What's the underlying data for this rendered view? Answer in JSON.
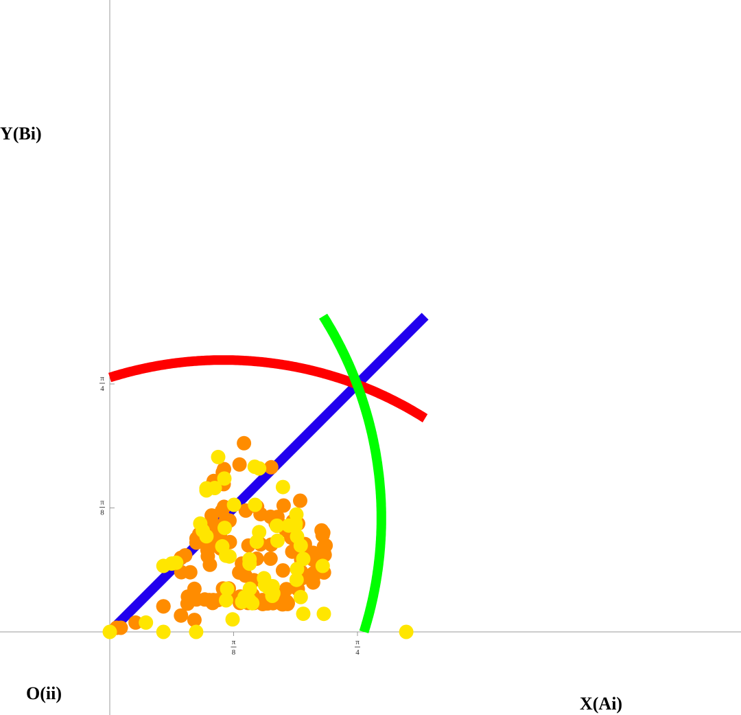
{
  "labels": {
    "y_axis": "Y(Bi)",
    "origin": "O(ii)",
    "x_axis": "X(Ai)"
  },
  "chart_data": {
    "type": "scatter",
    "title": "",
    "xlim": [
      0,
      1.0
    ],
    "ylim": [
      -0.06,
      1.06
    ],
    "x_ticks": [
      {
        "value": 0.3927,
        "numerator": "π",
        "denominator": "8"
      },
      {
        "value": 0.7854,
        "numerator": "π",
        "denominator": "4"
      }
    ],
    "y_ticks": [
      {
        "value": 0.3927,
        "numerator": "π",
        "denominator": "8"
      },
      {
        "value": 0.7854,
        "numerator": "π",
        "denominator": "4"
      }
    ],
    "curves": [
      {
        "name": "",
        "color": "#2200ee",
        "kind": "line",
        "from": [
          0,
          0
        ],
        "to": [
          1.0,
          1.0
        ]
      },
      {
        "name": "",
        "color": "#ff0000",
        "kind": "arc",
        "center": [
          0.3605,
          -0.3388
        ],
        "radius": 1.2,
        "x_range": [
          0,
          1.0
        ]
      },
      {
        "name": "",
        "color": "#00ff00",
        "kind": "arc",
        "center": [
          -0.3388,
          0.3605
        ],
        "radius": 1.2,
        "y_range": [
          0,
          1.0
        ]
      }
    ],
    "series": [
      {
        "name": "",
        "color": "#ff8c00",
        "points": [
          [
            0.0218,
            0.0131
          ],
          [
            0.0349,
            0.0131
          ],
          [
            0.0818,
            0.0295
          ],
          [
            0.1702,
            0.0807
          ],
          [
            0.1702,
            0.0812
          ],
          [
            0.2258,
            0.0518
          ],
          [
            0.2466,
            0.0895
          ],
          [
            0.2477,
            0.1119
          ],
          [
            0.2684,
            0.0379
          ],
          [
            0.2684,
            0.1364
          ],
          [
            0.2553,
            0.1888
          ],
          [
            0.2269,
            0.1891
          ],
          [
            0.239,
            0.2423
          ],
          [
            0.2258,
            0.2346
          ],
          [
            0.275,
            0.1026
          ],
          [
            0.275,
            0.2829
          ],
          [
            0.275,
            0.2957
          ],
          [
            0.2837,
            0.3101
          ],
          [
            0.3011,
            0.3009
          ],
          [
            0.3099,
            0.2589
          ],
          [
            0.3186,
            0.2719
          ],
          [
            0.3153,
            0.2737
          ],
          [
            0.3109,
            0.2395
          ],
          [
            0.3175,
            0.2126
          ],
          [
            0.3219,
            0.275
          ],
          [
            0.3262,
            0.3063
          ],
          [
            0.323,
            0.3393
          ],
          [
            0.323,
            0.3687
          ],
          [
            0.3339,
            0.2737
          ],
          [
            0.335,
            0.3078
          ],
          [
            0.3448,
            0.2819
          ],
          [
            0.3437,
            0.3348
          ],
          [
            0.3557,
            0.3833
          ],
          [
            0.3491,
            0.3052
          ],
          [
            0.3512,
            0.2644
          ],
          [
            0.3589,
            0.1375
          ],
          [
            0.3677,
            0.1364
          ],
          [
            0.3437,
            0.1009
          ],
          [
            0.3284,
            0.1009
          ],
          [
            0.3153,
            0.1009
          ],
          [
            0.3011,
            0.1026
          ],
          [
            0.3262,
            0.0917
          ],
          [
            0.3262,
            0.468
          ],
          [
            0.3295,
            0.478
          ],
          [
            0.3584,
            0.5052
          ],
          [
            0.3622,
            0.5156
          ],
          [
            0.3611,
            0.468
          ],
          [
            0.3622,
            0.3961
          ],
          [
            0.3688,
            0.3556
          ],
          [
            0.3797,
            0.3524
          ],
          [
            0.3808,
            0.2846
          ],
          [
            0.3775,
            0.1375
          ],
          [
            0.3764,
            0.118
          ],
          [
            0.4136,
            0.112
          ],
          [
            0.4103,
            0.188
          ],
          [
            0.4191,
            0.2164
          ],
          [
            0.43,
            0.1782
          ],
          [
            0.43,
            0.1051
          ],
          [
            0.4125,
            0.1051
          ],
          [
            0.4125,
            0.0917
          ],
          [
            0.4114,
            0.5301
          ],
          [
            0.4256,
            0.5977
          ],
          [
            0.4398,
            0.2737
          ],
          [
            0.4311,
            0.3842
          ],
          [
            0.4387,
            0.0917
          ],
          [
            0.4409,
            0.1009
          ],
          [
            0.4529,
            0.1176
          ],
          [
            0.4573,
            0.1027
          ],
          [
            0.4573,
            0.0917
          ],
          [
            0.4569,
            0.1638
          ],
          [
            0.466,
            0.2319
          ],
          [
            0.4671,
            0.3961
          ],
          [
            0.478,
            0.3728
          ],
          [
            0.478,
            0.2774
          ],
          [
            0.485,
            0.1009
          ],
          [
            0.485,
            0.0883
          ],
          [
            0.4967,
            0.0917
          ],
          [
            0.4956,
            0.0901
          ],
          [
            0.4993,
            0.1009
          ],
          [
            0.5011,
            0.0901
          ],
          [
            0.5098,
            0.3646
          ],
          [
            0.512,
            0.5215
          ],
          [
            0.512,
            0.2765
          ],
          [
            0.5098,
            0.2319
          ],
          [
            0.5153,
            0.1009
          ],
          [
            0.5175,
            0.091
          ],
          [
            0.5175,
            0.1009
          ],
          [
            0.5262,
            0.3428
          ],
          [
            0.5317,
            0.3643
          ],
          [
            0.5328,
            0.3496
          ],
          [
            0.535,
            0.3383
          ],
          [
            0.5372,
            0.12
          ],
          [
            0.5415,
            0.0974
          ],
          [
            0.547,
            0.0874
          ],
          [
            0.5474,
            0.0901
          ],
          [
            0.5492,
            0.1048
          ],
          [
            0.5514,
            0.4003
          ],
          [
            0.5415,
            0.0917
          ],
          [
            0.5492,
            0.0874
          ],
          [
            0.5492,
            0.1948
          ],
          [
            0.5601,
            0.1356
          ],
          [
            0.5612,
            0.096
          ],
          [
            0.5612,
            0.0891
          ],
          [
            0.5634,
            0.0883
          ],
          [
            0.5645,
            0.091
          ],
          [
            0.5787,
            0.2541
          ],
          [
            0.5809,
            0.351
          ],
          [
            0.594,
            0.1383
          ],
          [
            0.5962,
            0.1356
          ],
          [
            0.5972,
            0.3428
          ],
          [
            0.6038,
            0.4155
          ],
          [
            0.607,
            0.1902
          ],
          [
            0.607,
            0.2286
          ],
          [
            0.6092,
            0.17
          ],
          [
            0.6092,
            0.24
          ],
          [
            0.6453,
            0.2286
          ],
          [
            0.6453,
            0.2504
          ],
          [
            0.645,
            0.1735
          ],
          [
            0.6449,
            0.1565
          ],
          [
            0.6462,
            0.1858
          ],
          [
            0.6716,
            0.3216
          ],
          [
            0.6749,
            0.2541
          ],
          [
            0.6749,
            0.3063
          ],
          [
            0.6727,
            0.2401
          ],
          [
            0.6771,
            0.3143
          ],
          [
            0.6793,
            0.2701
          ],
          [
            0.6815,
            0.2438
          ],
          [
            0.6844,
            0.2737
          ],
          [
            0.6793,
            0.2519
          ],
          [
            0.6793,
            0.1882
          ],
          [
            0.559,
            0.3216
          ],
          [
            0.5896,
            0.2873
          ],
          [
            0.5655,
            0.3337
          ],
          [
            0.559,
            0.3282
          ],
          [
            0.5754,
            0.2988
          ],
          [
            0.623,
            0.2501
          ],
          [
            0.623,
            0.2409
          ],
          [
            0.6121,
            0.2301
          ],
          [
            0.6187,
            0.2701
          ],
          [
            0.6187,
            0.2782
          ]
        ]
      },
      {
        "name": "",
        "color": "#ffe600",
        "points": [
          [
            0.0,
            0.0
          ],
          [
            0.1146,
            0.0295
          ],
          [
            0.1702,
            0.0
          ],
          [
            0.1702,
            0.2091
          ],
          [
            0.1964,
            0.2164
          ],
          [
            0.2106,
            0.2191
          ],
          [
            0.2739,
            0.0
          ],
          [
            0.287,
            0.3431
          ],
          [
            0.295,
            0.3206
          ],
          [
            0.3066,
            0.4547
          ],
          [
            0.3066,
            0.4481
          ],
          [
            0.3066,
            0.3029
          ],
          [
            0.3328,
            0.4558
          ],
          [
            0.3437,
            0.5539
          ],
          [
            0.3633,
            0.4858
          ],
          [
            0.3568,
            0.271
          ],
          [
            0.3644,
            0.3293
          ],
          [
            0.3688,
            0.2412
          ],
          [
            0.3688,
            0.1
          ],
          [
            0.372,
            0.1364
          ],
          [
            0.3797,
            0.2388
          ],
          [
            0.3895,
            0.0397
          ],
          [
            0.3939,
            0.4024
          ],
          [
            0.4278,
            0.1102
          ],
          [
            0.4431,
            0.1
          ],
          [
            0.4442,
            0.1364
          ],
          [
            0.4519,
            0.091
          ],
          [
            0.4606,
            0.4024
          ],
          [
            0.4737,
            0.5177
          ],
          [
            0.4595,
            0.5232
          ],
          [
            0.4431,
            0.2301
          ],
          [
            0.4431,
            0.216
          ],
          [
            0.4661,
            0.2855
          ],
          [
            0.4737,
            0.3161
          ],
          [
            0.4891,
            0.17
          ],
          [
            0.4924,
            0.1482
          ],
          [
            0.5022,
            0.1473
          ],
          [
            0.5044,
            0.1391
          ],
          [
            0.5164,
            0.1446
          ],
          [
            0.5153,
            0.1143
          ],
          [
            0.5186,
            0.122
          ],
          [
            0.5295,
            0.3361
          ],
          [
            0.5317,
            0.2886
          ],
          [
            0.5306,
            0.3361
          ],
          [
            0.5491,
            0.4589
          ],
          [
            0.5676,
            0.3368
          ],
          [
            0.5884,
            0.3343
          ],
          [
            0.5895,
            0.3434
          ],
          [
            0.5918,
            0.372
          ],
          [
            0.5924,
            0.165
          ],
          [
            0.5939,
            0.3022
          ],
          [
            0.594,
            0.1991
          ],
          [
            0.6055,
            0.2734
          ],
          [
            0.6055,
            0.1102
          ],
          [
            0.6135,
            0.2311
          ],
          [
            0.6135,
            0.0574
          ],
          [
            0.675,
            0.2091
          ],
          [
            0.6789,
            0.0573
          ],
          [
            0.94,
            0.0
          ],
          [
            0.42,
            0.095
          ]
        ]
      }
    ]
  }
}
